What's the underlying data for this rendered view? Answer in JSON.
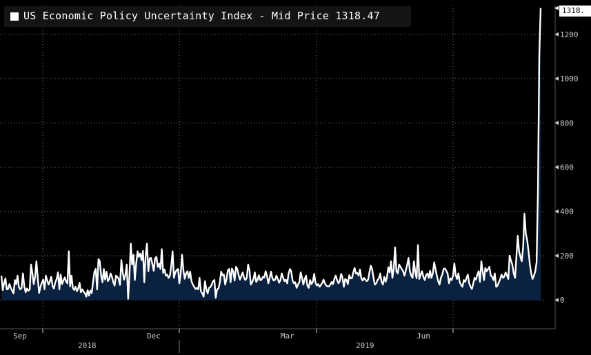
{
  "legend": {
    "title": "US Economic Policy Uncertainty Index - Mid Price",
    "last_value": "1318.47",
    "last_value_tag": "1318."
  },
  "colors": {
    "background": "#000000",
    "area_fill": "#0a2140",
    "line": "#ffffff",
    "grid": "#7a7a7a",
    "axis_text": "#cccccc",
    "legend_bg": "#141414"
  },
  "chart_data": {
    "type": "area",
    "title": "US Economic Policy Uncertainty Index - Mid Price",
    "xlabel": "",
    "ylabel": "",
    "ylim": [
      -130,
      1330
    ],
    "y_ticks": [
      0,
      200,
      400,
      600,
      800,
      1000,
      1200
    ],
    "x_month_ticks": [
      "Sep",
      "Dec",
      "Mar",
      "Jun"
    ],
    "x_year_labels": [
      "2018",
      "2019"
    ],
    "grid": true,
    "y_axis_side": "right",
    "period": "2018-08-24 to 2019-08-28 (daily)",
    "series": [
      {
        "name": "US Economic Policy Uncertainty Index",
        "last": 1318.47,
        "values": [
          110,
          45,
          75,
          98,
          48,
          50,
          72,
          55,
          42,
          30,
          90,
          72,
          110,
          58,
          48,
          55,
          120,
          62,
          35,
          52,
          42,
          48,
          160,
          120,
          72,
          105,
          175,
          98,
          32,
          60,
          78,
          92,
          48,
          110,
          88,
          70,
          85,
          105,
          62,
          52,
          80,
          95,
          125,
          48,
          115,
          72,
          88,
          102,
          85,
          75,
          220,
          62,
          110,
          55,
          45,
          60,
          40,
          52,
          78,
          35,
          48,
          38,
          30,
          15,
          45,
          20,
          42,
          32,
          80,
          128,
          140,
          48,
          185,
          175,
          110,
          80,
          140,
          92,
          128,
          85,
          95,
          120,
          105,
          80,
          65,
          110,
          105,
          95,
          68,
          180,
          125,
          92,
          115,
          160,
          5,
          110,
          255,
          160,
          205,
          90,
          165,
          220,
          195,
          210,
          180,
          222,
          80,
          200,
          255,
          130,
          188,
          190,
          162,
          132,
          188,
          195,
          150,
          165,
          140,
          230,
          122,
          138,
          110,
          115,
          100,
          110,
          155,
          220,
          100,
          125,
          135,
          140,
          75,
          120,
          205,
          135,
          96,
          120,
          130,
          100,
          128,
          85,
          70,
          60,
          50,
          55,
          48,
          100,
          40,
          30,
          15,
          85,
          48,
          30,
          55,
          58,
          70,
          85,
          90,
          10,
          48,
          52,
          78,
          128,
          112,
          115,
          70,
          95,
          135,
          140,
          80,
          142,
          128,
          88,
          150,
          140,
          112,
          92,
          110,
          125,
          100,
          90,
          100,
          160,
          135,
          70,
          80,
          95,
          125,
          82,
          90,
          112,
          90,
          92,
          105,
          102,
          130,
          110,
          75,
          100,
          128,
          98,
          88,
          92,
          110,
          95,
          78,
          90,
          120,
          100,
          85,
          92,
          75,
          118,
          140,
          130,
          88,
          75,
          80,
          55,
          70,
          80,
          125,
          100,
          70,
          95,
          110,
          65,
          55,
          90,
          72,
          82,
          118,
          78,
          65,
          72,
          60,
          68,
          78,
          92,
          75,
          65,
          62,
          62,
          70,
          82,
          72,
          95,
          110,
          90,
          75,
          85,
          118,
          102,
          60,
          95,
          90,
          72,
          112,
          98,
          98,
          125,
          145,
          120,
          122,
          110,
          138,
          98,
          88,
          100,
          92,
          85,
          92,
          125,
          155,
          140,
          102,
          70,
          75,
          90,
          98,
          120,
          82,
          70,
          105,
          82,
          102,
          148,
          125,
          175,
          100,
          140,
          238,
          130,
          120,
          160,
          150,
          140,
          130,
          110,
          135,
          160,
          190,
          130,
          110,
          100,
          175,
          125,
          98,
          248,
          95,
          115,
          130,
          105,
          90,
          112,
          120,
          100,
          132,
          100,
          120,
          170,
          140,
          110,
          85,
          70,
          100,
          115,
          140,
          142,
          132,
          120,
          75,
          98,
          90,
          110,
          165,
          112,
          95,
          120,
          80,
          68,
          60,
          90,
          82,
          100,
          115,
          75,
          60,
          50,
          75,
          100,
          92,
          115,
          130,
          82,
          175,
          130,
          90,
          145,
          130,
          140,
          150,
          110,
          105,
          90,
          120,
          60,
          65,
          80,
          95,
          115,
          100,
          105,
          125,
          112,
          95,
          200,
          178,
          160,
          120,
          100,
          195,
          290,
          220,
          195,
          175,
          240,
          390,
          300,
          270,
          220,
          160,
          120,
          95,
          110,
          130,
          170,
          500,
          1100,
          1318.47
        ]
      }
    ]
  }
}
